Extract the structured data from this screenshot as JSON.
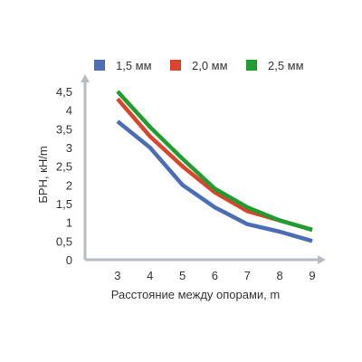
{
  "chart_data": {
    "type": "line",
    "title": "",
    "xlabel": "Расстояние между опорами, m",
    "ylabel": "БРН, кН/m",
    "x": [
      3,
      4,
      5,
      6,
      7,
      8,
      9
    ],
    "xlim": [
      2,
      9
    ],
    "ylim": [
      0,
      4.5
    ],
    "x_ticks": [
      "3",
      "4",
      "5",
      "6",
      "7",
      "8",
      "9"
    ],
    "y_ticks": [
      "0",
      "0,5",
      "1",
      "1,5",
      "2",
      "2,5",
      "3",
      "3,5",
      "4",
      "4,5"
    ],
    "grid": false,
    "legend_position": "top",
    "series": [
      {
        "name": "1,5 мм",
        "color": "#4a6db5",
        "values": [
          3.7,
          3.0,
          2.0,
          1.4,
          0.95,
          0.75,
          0.5
        ]
      },
      {
        "name": "2,0 мм",
        "color": "#d9442b",
        "values": [
          4.3,
          3.3,
          2.5,
          1.8,
          1.3,
          1.05,
          0.8
        ]
      },
      {
        "name": "2,5 мм",
        "color": "#1f9e2f",
        "values": [
          4.5,
          3.55,
          2.7,
          1.9,
          1.4,
          1.05,
          0.8
        ]
      }
    ]
  }
}
